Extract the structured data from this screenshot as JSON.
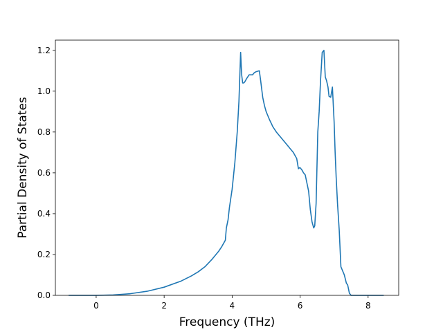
{
  "chart_data": {
    "type": "line",
    "title": "",
    "xlabel": "Frequency (THz)",
    "ylabel": "Partial Density of States",
    "xlim": [
      -1.2,
      8.9
    ],
    "ylim": [
      0.0,
      1.25
    ],
    "xticks": [
      0,
      2,
      4,
      6,
      8
    ],
    "xtick_labels": [
      "0",
      "2",
      "4",
      "6",
      "8"
    ],
    "yticks": [
      0.0,
      0.2,
      0.4,
      0.6,
      0.8,
      1.0,
      1.2
    ],
    "ytick_labels": [
      "0.0",
      "0.2",
      "0.4",
      "0.6",
      "0.8",
      "1.0",
      "1.2"
    ],
    "grid": false,
    "legend": "none",
    "line_color": "#1f77b4",
    "series": [
      {
        "x": [
          -0.8,
          -0.5,
          0.0,
          0.5,
          1.0,
          1.5,
          2.0,
          2.5,
          2.8,
          3.0,
          3.2,
          3.4,
          3.6,
          3.7,
          3.8,
          3.83,
          3.88,
          3.92,
          4.0,
          4.08,
          4.15,
          4.2,
          4.25,
          4.28,
          4.31,
          4.34,
          4.37,
          4.42,
          4.5,
          4.6,
          4.65,
          4.7,
          4.8,
          4.84,
          4.9,
          4.95,
          5.0,
          5.1,
          5.2,
          5.3,
          5.4,
          5.5,
          5.6,
          5.7,
          5.8,
          5.9,
          5.95,
          5.98,
          6.0,
          6.05,
          6.1,
          6.15,
          6.2,
          6.25,
          6.3,
          6.35,
          6.4,
          6.43,
          6.47,
          6.52,
          6.56,
          6.6,
          6.65,
          6.7,
          6.74,
          6.78,
          6.82,
          6.85,
          6.9,
          6.95,
          7.0,
          7.03,
          7.06,
          7.1,
          7.15,
          7.2,
          7.25,
          7.3,
          7.33,
          7.36,
          7.4,
          7.45,
          7.5,
          7.55,
          7.6,
          7.65,
          7.7,
          7.8,
          8.0,
          8.3,
          8.45
        ],
        "y": [
          0.0,
          0.0,
          0.0,
          0.002,
          0.008,
          0.02,
          0.04,
          0.07,
          0.095,
          0.115,
          0.14,
          0.175,
          0.215,
          0.24,
          0.27,
          0.33,
          0.37,
          0.43,
          0.52,
          0.65,
          0.8,
          0.95,
          1.19,
          1.08,
          1.04,
          1.04,
          1.045,
          1.06,
          1.08,
          1.08,
          1.09,
          1.095,
          1.1,
          1.05,
          0.97,
          0.93,
          0.9,
          0.86,
          0.825,
          0.8,
          0.78,
          0.76,
          0.74,
          0.72,
          0.7,
          0.67,
          0.62,
          0.625,
          0.625,
          0.615,
          0.6,
          0.59,
          0.55,
          0.51,
          0.42,
          0.36,
          0.33,
          0.34,
          0.45,
          0.8,
          0.9,
          1.05,
          1.19,
          1.2,
          1.07,
          1.05,
          1.02,
          0.975,
          0.97,
          1.02,
          0.85,
          0.7,
          0.58,
          0.45,
          0.32,
          0.14,
          0.12,
          0.1,
          0.08,
          0.06,
          0.05,
          0.01,
          0.0,
          0.0,
          0.0,
          0.0,
          0.0,
          0.0,
          0.0,
          0.0,
          0.0
        ]
      }
    ]
  }
}
